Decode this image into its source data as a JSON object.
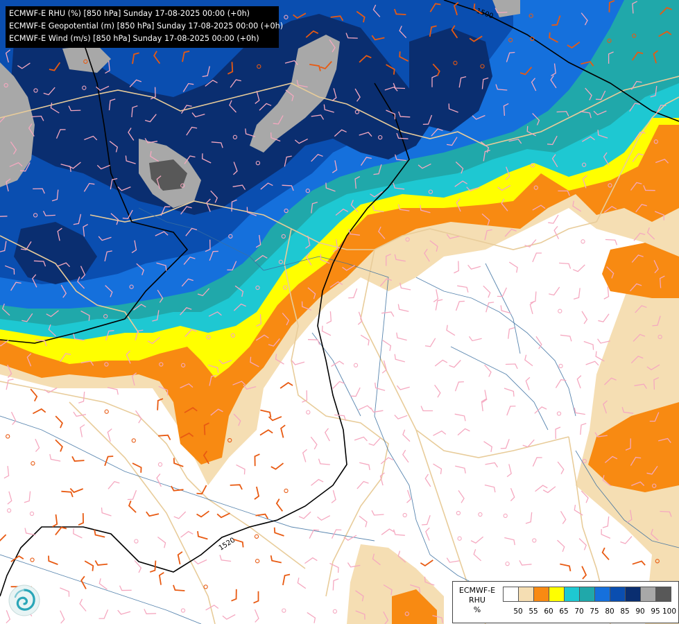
{
  "header": {
    "lines": [
      "ECMWF-E RHU (%) [850 hPa] Sunday 17-08-2025 00:00 (+0h)",
      "ECMWF-E Geopotential (m) [850 hPa] Sunday 17-08-2025 00:00 (+0h)",
      "ECMWF-E Wind (m/s) [850 hPa] Sunday 17-08-2025 00:00 (+0h)"
    ]
  },
  "contours": {
    "label_north": "1500",
    "label_south": "1520"
  },
  "legend": {
    "title_lines": [
      "ECMWF-E",
      "RHU",
      "%"
    ],
    "ticks": [
      "50",
      "55",
      "60",
      "65",
      "70",
      "75",
      "80",
      "85",
      "90",
      "95",
      "100"
    ],
    "colors": [
      "#ffffff",
      "#f5deb3",
      "#f88a12",
      "#ffff00",
      "#1ec8d2",
      "#20a8aa",
      "#1570dc",
      "#0a4eb0",
      "#0a2e70",
      "#a8a8a8",
      "#585858"
    ]
  },
  "colors": {
    "dry": "#ffffff",
    "rhu_55": "#f5deb3",
    "rhu_60": "#f88a12",
    "rhu_65": "#ffff00",
    "rhu_70": "#1ec8d2",
    "rhu_75": "#20a8aa",
    "rhu_80": "#1570dc",
    "rhu_85": "#0a4eb0",
    "rhu_90": "#0a2e70",
    "rhu_95": "#a8a8a8",
    "rhu_100": "#585858",
    "border": "#e8cc9a",
    "river": "#3a6fa0",
    "geopotential": "#000000",
    "wind_pink": "#f5a8c0",
    "wind_orange": "#e85a12"
  },
  "icons": {
    "logo": "ecmwf-swirl-logo"
  }
}
